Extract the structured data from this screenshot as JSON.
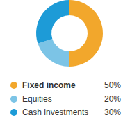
{
  "chart_data": {
    "type": "pie",
    "categories": [
      "Fixed income",
      "Equities",
      "Cash investments"
    ],
    "values": [
      50,
      20,
      30
    ],
    "value_labels": [
      "50%",
      "20%",
      "30%"
    ],
    "colors": [
      "#f2a72c",
      "#7cc4e6",
      "#1d9bd7"
    ],
    "legend": "bottom"
  }
}
